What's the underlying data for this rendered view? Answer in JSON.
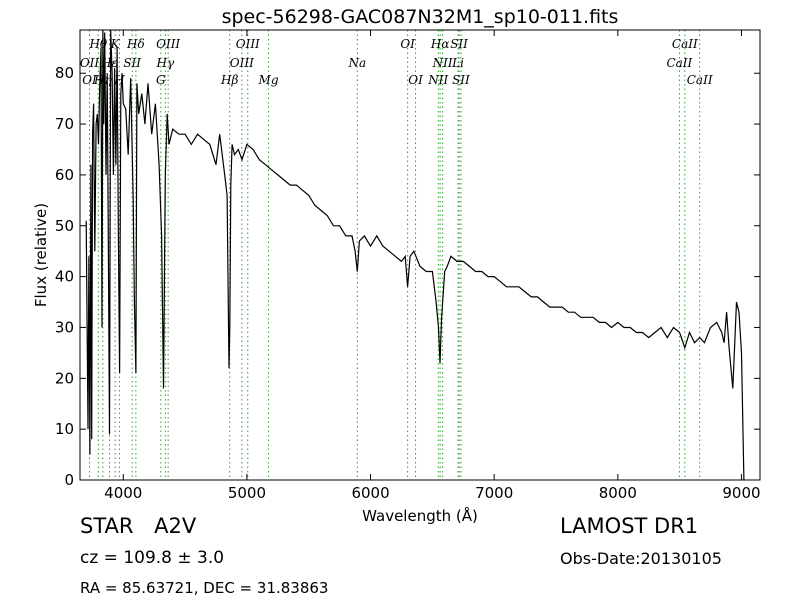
{
  "chart_data": {
    "type": "line",
    "title": "spec-56298-GAC087N32M1_sp10-011.fits",
    "xlabel": "Wavelength (Å)",
    "ylabel": "Flux (relative)",
    "xlim": [
      3650,
      9150
    ],
    "ylim": [
      0,
      88.5
    ],
    "xticks": [
      4000,
      5000,
      6000,
      7000,
      8000,
      9000
    ],
    "yticks": [
      0,
      10,
      20,
      30,
      40,
      50,
      60,
      70,
      80
    ],
    "grid": false,
    "line_color": "#000000",
    "marker_color": "#2ca02c",
    "series": [
      {
        "x": [
          3700,
          3715,
          3722,
          3730,
          3738,
          3745,
          3752,
          3760,
          3770,
          3780,
          3790,
          3800,
          3810,
          3820,
          3828,
          3835,
          3842,
          3850,
          3860,
          3870,
          3880,
          3889,
          3898,
          3910,
          3920,
          3930,
          3940,
          3950,
          3960,
          3970,
          3980,
          3990,
          4000,
          4020,
          4040,
          4060,
          4080,
          4090,
          4102,
          4110,
          4125,
          4150,
          4175,
          4200,
          4230,
          4260,
          4290,
          4310,
          4325,
          4340,
          4355,
          4370,
          4400,
          4450,
          4500,
          4550,
          4600,
          4650,
          4700,
          4750,
          4780,
          4800,
          4820,
          4840,
          4855,
          4862,
          4870,
          4880,
          4900,
          4930,
          4960,
          5000,
          5050,
          5100,
          5150,
          5200,
          5250,
          5300,
          5350,
          5400,
          5450,
          5500,
          5550,
          5600,
          5650,
          5700,
          5750,
          5800,
          5850,
          5875,
          5893,
          5910,
          5950,
          6000,
          6050,
          6100,
          6150,
          6200,
          6250,
          6280,
          6300,
          6320,
          6350,
          6400,
          6450,
          6500,
          6530,
          6550,
          6562,
          6575,
          6600,
          6620,
          6650,
          6700,
          6750,
          6800,
          6850,
          6900,
          6950,
          7000,
          7050,
          7100,
          7150,
          7200,
          7250,
          7300,
          7350,
          7400,
          7450,
          7500,
          7550,
          7600,
          7650,
          7700,
          7750,
          7800,
          7850,
          7900,
          7950,
          8000,
          8050,
          8100,
          8150,
          8200,
          8250,
          8300,
          8350,
          8400,
          8450,
          8500,
          8542,
          8580,
          8620,
          8662,
          8700,
          8750,
          8800,
          8840,
          8860,
          8880,
          8900,
          8930,
          8960,
          8980,
          9000,
          9020
        ],
        "y": [
          51,
          10,
          44,
          5,
          62,
          8,
          68,
          74,
          45,
          70,
          72,
          66,
          78,
          85,
          30,
          92,
          70,
          88,
          60,
          80,
          45,
          9,
          90,
          80,
          60,
          81,
          62,
          85,
          50,
          21,
          76,
          80,
          74,
          73,
          64,
          79,
          55,
          35,
          21,
          78,
          72,
          76,
          70,
          78,
          68,
          74,
          62,
          48,
          18,
          60,
          72,
          66,
          69,
          68,
          68,
          66,
          68,
          67,
          66,
          62,
          68,
          64,
          60,
          56,
          22,
          30,
          58,
          66,
          64,
          65,
          63,
          66,
          65,
          63,
          62,
          61,
          60,
          59,
          58,
          58,
          57,
          56,
          54,
          53,
          52,
          50,
          50,
          48,
          48,
          45,
          41,
          47,
          48,
          46,
          48,
          46,
          45,
          44,
          43,
          44,
          38,
          44,
          45,
          42,
          41,
          41,
          35,
          30,
          23,
          32,
          41,
          42,
          44,
          43,
          43,
          42,
          41,
          41,
          40,
          40,
          39,
          38,
          38,
          38,
          37,
          36,
          36,
          35,
          34,
          34,
          34,
          33,
          33,
          32,
          32,
          32,
          31,
          31,
          30,
          31,
          30,
          30,
          29,
          29,
          28,
          29,
          30,
          28,
          30,
          29,
          26,
          29,
          27,
          28,
          27,
          30,
          31,
          29,
          27,
          33,
          26,
          18,
          35,
          33,
          25,
          0
        ]
      }
    ],
    "lines": [
      {
        "name": "Hθ",
        "x": 3798,
        "row": 0
      },
      {
        "name": "OII",
        "x": 3727,
        "row": 1
      },
      {
        "name": "OI",
        "x": 3727,
        "row": 2
      },
      {
        "name": "Hη",
        "x": 3835,
        "row": 2
      },
      {
        "name": "Hε",
        "x": 3889,
        "row": 1
      },
      {
        "name": "K",
        "x": 3934,
        "row": 0
      },
      {
        "name": "H",
        "x": 3969,
        "row": 2
      },
      {
        "name": "SII",
        "x": 4072,
        "row": 1
      },
      {
        "name": "Hδ",
        "x": 4102,
        "row": 0
      },
      {
        "name": "OIII",
        "x": 4363,
        "row": 0
      },
      {
        "name": "Hγ",
        "x": 4340,
        "row": 1
      },
      {
        "name": "G",
        "x": 4304,
        "row": 2
      },
      {
        "name": "OIII",
        "x": 5007,
        "row": 0
      },
      {
        "name": "OIII",
        "x": 4959,
        "row": 1
      },
      {
        "name": "Hβ",
        "x": 4861,
        "row": 2
      },
      {
        "name": "Mg",
        "x": 5175,
        "row": 2
      },
      {
        "name": "Na",
        "x": 5893,
        "row": 1
      },
      {
        "name": "OI",
        "x": 6300,
        "row": 0
      },
      {
        "name": "OI",
        "x": 6364,
        "row": 2
      },
      {
        "name": "Hα",
        "x": 6563,
        "row": 0
      },
      {
        "name": "SII",
        "x": 6716,
        "row": 0
      },
      {
        "name": "NII",
        "x": 6583,
        "row": 1
      },
      {
        "name": "Li",
        "x": 6708,
        "row": 1
      },
      {
        "name": "NII",
        "x": 6548,
        "row": 2
      },
      {
        "name": "SII",
        "x": 6731,
        "row": 2
      },
      {
        "name": "CaII",
        "x": 8542,
        "row": 0
      },
      {
        "name": "CaII",
        "x": 8498,
        "row": 1
      },
      {
        "name": "CaII",
        "x": 8662,
        "row": 2
      }
    ]
  },
  "info": {
    "class_label": "STAR",
    "subclass": "A2V",
    "cz_label": "cz = 109.8  ± 3.0",
    "survey": "LAMOST DR1",
    "obs_date": "Obs-Date:20130105",
    "coords": "RA = 85.63721, DEC = 31.83863"
  }
}
